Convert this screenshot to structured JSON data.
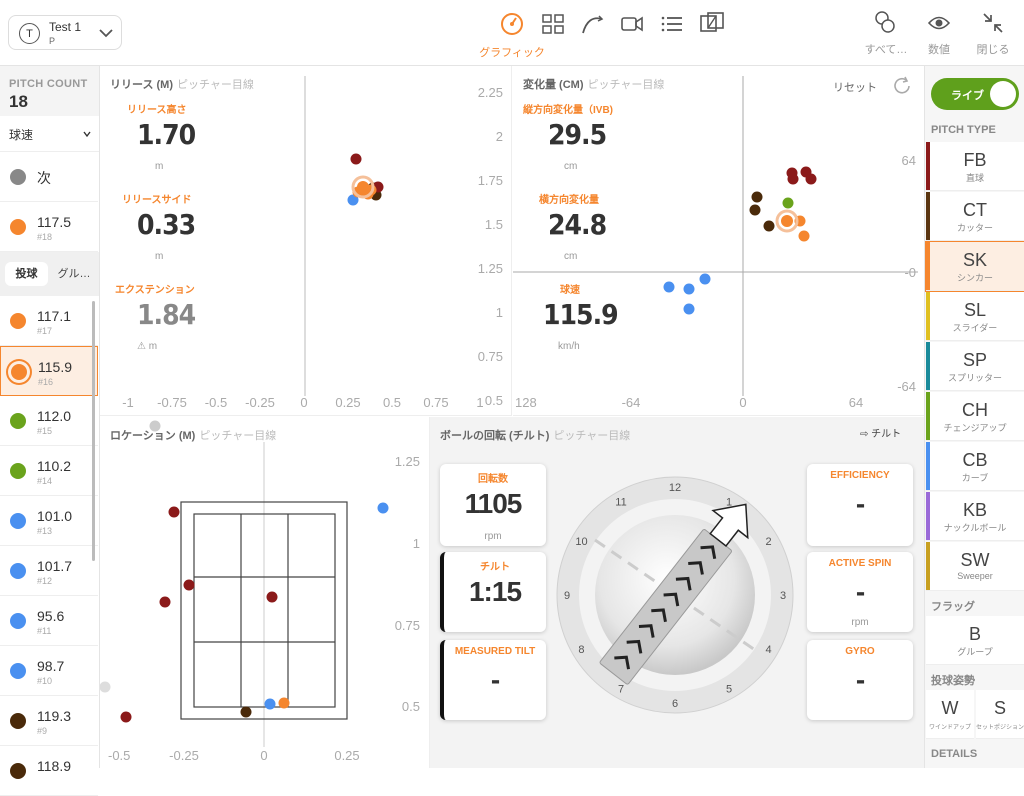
{
  "header": {
    "player_initial": "T",
    "player_name": "Test 1",
    "player_position": "P",
    "active_tab_label": "グラフィック",
    "right_actions": [
      {
        "label": "すべて…"
      },
      {
        "label": "数値"
      },
      {
        "label": "閉じる"
      }
    ]
  },
  "left": {
    "pitch_count_label": "PITCH COUNT",
    "pitch_count": "18",
    "filter": "球速",
    "next_label": "次",
    "top_item": {
      "value": "117.5",
      "num": "#18",
      "color": "#f5862e"
    },
    "tabs": [
      "投球",
      "グル…"
    ],
    "items": [
      {
        "value": "117.1",
        "num": "#17",
        "color": "#f5862e"
      },
      {
        "value": "115.9",
        "num": "#16",
        "color": "#f5862e"
      },
      {
        "value": "112.0",
        "num": "#15",
        "color": "#6aa31c"
      },
      {
        "value": "110.2",
        "num": "#14",
        "color": "#6aa31c"
      },
      {
        "value": "101.0",
        "num": "#13",
        "color": "#4a90f0"
      },
      {
        "value": "101.7",
        "num": "#12",
        "color": "#4a90f0"
      },
      {
        "value": "95.6",
        "num": "#11",
        "color": "#4a90f0"
      },
      {
        "value": "98.7",
        "num": "#10",
        "color": "#4a90f0"
      },
      {
        "value": "119.3",
        "num": "#9",
        "color": "#4a2a0a"
      },
      {
        "value": "118.9",
        "num": "",
        "color": "#4a2a0a"
      }
    ]
  },
  "release": {
    "title": "リリース (M)",
    "subtitle": "ピッチャー目線",
    "height_label": "リリース高さ",
    "height_value": "1.70",
    "height_unit": "m",
    "side_label": "リリースサイド",
    "side_value": "0.33",
    "side_unit": "m",
    "ext_label": "エクステンション",
    "ext_value": "1.84",
    "ext_unit": "m",
    "x_ticks": [
      "-1",
      "-0.75",
      "-0.5",
      "-0.25",
      "0",
      "0.25",
      "0.5",
      "0.75",
      "1"
    ],
    "y_ticks": [
      "2.25",
      "2",
      "1.75",
      "1.5",
      "1.25",
      "1",
      "0.75",
      "0.5"
    ]
  },
  "movement": {
    "title": "変化量 (CM)",
    "subtitle": "ピッチャー目線",
    "reset_label": "リセット",
    "ivb_label": "縦方向変化量（IVB)",
    "ivb_value": "29.5",
    "ivb_unit": "cm",
    "hb_label": "横方向変化量",
    "hb_value": "24.8",
    "hb_unit": "cm",
    "speed_label": "球速",
    "speed_value": "115.9",
    "speed_unit": "km/h",
    "x_ticks": [
      "128",
      "-64",
      "0",
      "64"
    ],
    "y_ticks": [
      "64",
      "-0",
      "-64"
    ]
  },
  "location": {
    "title": "ロケーション (M)",
    "subtitle": "ピッチャー目線",
    "x_ticks": [
      "-0.5",
      "-0.25",
      "0",
      "0.25"
    ],
    "y_ticks": [
      "1.25",
      "1",
      "0.75",
      "0.5"
    ]
  },
  "spin": {
    "title": "ボールの回転 (チルト)",
    "subtitle": "ピッチャー目線",
    "tilt_toggle": "チルト",
    "rate_label": "回転数",
    "rate_value": "1105",
    "rate_unit": "rpm",
    "tilt_label": "チルト",
    "tilt_value": "1:15",
    "measured_label": "MEASURED TILT",
    "measured_value": "-",
    "eff_label": "EFFICIENCY",
    "eff_value": "-",
    "active_label": "ACTIVE SPIN",
    "active_value": "-",
    "active_unit": "rpm",
    "gyro_label": "GYRO",
    "gyro_value": "-",
    "clock": [
      "12",
      "1",
      "2",
      "3",
      "4",
      "5",
      "6",
      "7",
      "8",
      "9",
      "10",
      "11"
    ]
  },
  "right": {
    "live_label": "ライブ",
    "pitch_type_label": "PITCH TYPE",
    "types": [
      {
        "code": "FB",
        "jp": "直球",
        "color": "#8b1a1a"
      },
      {
        "code": "CT",
        "jp": "カッター",
        "color": "#5a3510"
      },
      {
        "code": "SK",
        "jp": "シンカー",
        "color": "#f5862e"
      },
      {
        "code": "SL",
        "jp": "スライダー",
        "color": "#e0c020"
      },
      {
        "code": "SP",
        "jp": "スプリッター",
        "color": "#1a8a9a"
      },
      {
        "code": "CH",
        "jp": "チェンジアップ",
        "color": "#6aa31c"
      },
      {
        "code": "CB",
        "jp": "カーブ",
        "color": "#4a90f0"
      },
      {
        "code": "KB",
        "jp": "ナックルボール",
        "color": "#9a6ad8"
      },
      {
        "code": "SW",
        "jp": "Sweeper",
        "color": "#c8a020"
      }
    ],
    "flag_label": "フラッグ",
    "flag_code": "B",
    "flag_jp": "グループ",
    "posture_label": "投球姿勢",
    "w_code": "W",
    "w_jp": "ワインドアップ",
    "s_code": "S",
    "s_jp": "セットポジション",
    "details_label": "DETAILS"
  },
  "colors": {
    "accent": "#f5862e",
    "live": "#5fa01c"
  }
}
